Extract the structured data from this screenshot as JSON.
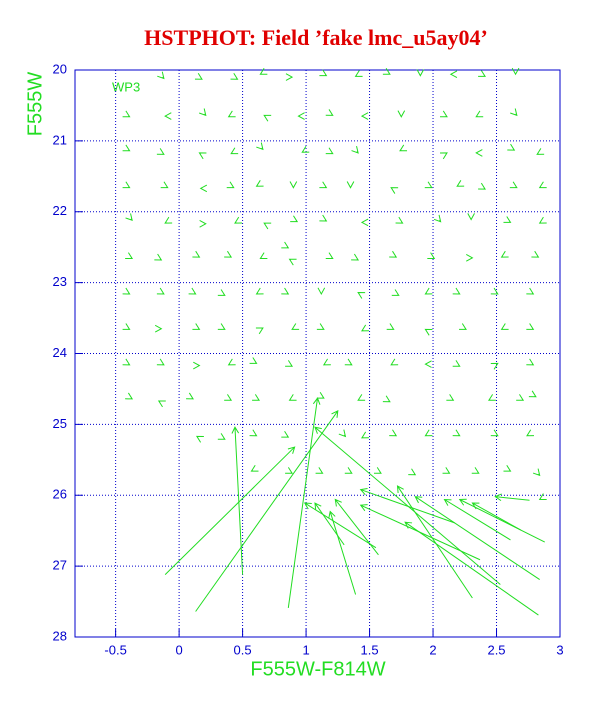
{
  "chart_data": {
    "type": "quiver",
    "title": "HSTPHOT: Field ’fake lmc_u5ay04’",
    "annotation": "WP3",
    "x_label": "F555W-F814W",
    "y_label": "F555W",
    "xlim": [
      -0.82,
      3.0
    ],
    "ylim": [
      20,
      28
    ],
    "y_inverted": true,
    "xticks": [
      -0.5,
      0,
      0.5,
      1,
      1.5,
      2,
      2.5,
      3
    ],
    "yticks": [
      20,
      21,
      22,
      23,
      24,
      25,
      26,
      27,
      28
    ],
    "grid": true,
    "color": "#22dd22",
    "vectors": [
      [
        -0.13,
        20.1,
        -0.12,
        20.12
      ],
      [
        0.17,
        20.12,
        0.18,
        20.13
      ],
      [
        0.45,
        20.12,
        0.46,
        20.13
      ],
      [
        0.65,
        20.05,
        0.64,
        20.06
      ],
      [
        0.88,
        20.1,
        0.89,
        20.1
      ],
      [
        1.15,
        20.07,
        1.16,
        20.08
      ],
      [
        1.4,
        20.08,
        1.39,
        20.09
      ],
      [
        1.65,
        20.05,
        1.66,
        20.06
      ],
      [
        1.9,
        20.07,
        1.9,
        20.08
      ],
      [
        2.15,
        20.06,
        2.14,
        20.06
      ],
      [
        2.4,
        20.08,
        2.41,
        20.09
      ],
      [
        2.65,
        20.05,
        2.65,
        20.06
      ],
      [
        -0.4,
        20.65,
        -0.39,
        20.66
      ],
      [
        -0.1,
        20.65,
        -0.11,
        20.65
      ],
      [
        0.2,
        20.62,
        0.21,
        20.64
      ],
      [
        0.4,
        20.65,
        0.39,
        20.66
      ],
      [
        0.68,
        20.65,
        0.67,
        20.64
      ],
      [
        0.95,
        20.65,
        0.94,
        20.65
      ],
      [
        1.2,
        20.63,
        1.21,
        20.64
      ],
      [
        1.45,
        20.65,
        1.44,
        20.65
      ],
      [
        1.75,
        20.65,
        1.75,
        20.66
      ],
      [
        2.1,
        20.65,
        2.11,
        20.66
      ],
      [
        2.35,
        20.65,
        2.34,
        20.66
      ],
      [
        2.65,
        20.62,
        2.66,
        20.64
      ],
      [
        -0.4,
        21.13,
        -0.39,
        21.14
      ],
      [
        -0.13,
        21.18,
        -0.12,
        21.19
      ],
      [
        0.17,
        21.18,
        0.16,
        21.17
      ],
      [
        0.42,
        21.17,
        0.41,
        21.18
      ],
      [
        0.65,
        21.1,
        0.66,
        21.12
      ],
      [
        0.98,
        21.15,
        0.97,
        21.16
      ],
      [
        1.2,
        21.17,
        1.21,
        21.18
      ],
      [
        1.4,
        21.15,
        1.41,
        21.17
      ],
      [
        1.75,
        21.13,
        1.74,
        21.14
      ],
      [
        2.1,
        21.18,
        2.11,
        21.17
      ],
      [
        2.35,
        21.17,
        2.34,
        21.17
      ],
      [
        2.63,
        21.12,
        2.64,
        21.13
      ],
      [
        2.83,
        21.18,
        2.82,
        21.19
      ],
      [
        -0.4,
        21.65,
        -0.39,
        21.66
      ],
      [
        -0.1,
        21.65,
        -0.09,
        21.66
      ],
      [
        0.18,
        21.67,
        0.17,
        21.67
      ],
      [
        0.42,
        21.65,
        0.43,
        21.66
      ],
      [
        0.62,
        21.63,
        0.61,
        21.64
      ],
      [
        0.9,
        21.65,
        0.9,
        21.66
      ],
      [
        1.15,
        21.65,
        1.16,
        21.66
      ],
      [
        1.35,
        21.65,
        1.35,
        21.66
      ],
      [
        1.68,
        21.67,
        1.67,
        21.66
      ],
      [
        1.98,
        21.65,
        1.99,
        21.66
      ],
      [
        2.2,
        21.63,
        2.19,
        21.64
      ],
      [
        2.4,
        21.67,
        2.41,
        21.68
      ],
      [
        2.65,
        21.65,
        2.66,
        21.66
      ],
      [
        2.85,
        21.65,
        2.84,
        21.66
      ],
      [
        -0.38,
        22.1,
        -0.37,
        22.12
      ],
      [
        -0.1,
        22.15,
        -0.11,
        22.16
      ],
      [
        0.2,
        22.17,
        0.21,
        22.17
      ],
      [
        0.45,
        22.15,
        0.44,
        22.16
      ],
      [
        0.68,
        22.17,
        0.67,
        22.16
      ],
      [
        0.92,
        22.13,
        0.93,
        22.14
      ],
      [
        1.15,
        22.12,
        1.16,
        22.13
      ],
      [
        1.45,
        22.15,
        1.44,
        22.15
      ],
      [
        1.75,
        22.15,
        1.76,
        22.16
      ],
      [
        2.05,
        22.12,
        2.06,
        22.14
      ],
      [
        2.3,
        22.1,
        2.3,
        22.11
      ],
      [
        2.6,
        22.14,
        2.61,
        22.15
      ],
      [
        2.85,
        22.15,
        2.84,
        22.16
      ],
      [
        -0.38,
        22.65,
        -0.37,
        22.66
      ],
      [
        -0.15,
        22.67,
        -0.14,
        22.68
      ],
      [
        0.15,
        22.63,
        0.16,
        22.64
      ],
      [
        0.4,
        22.63,
        0.41,
        22.64
      ],
      [
        0.65,
        22.65,
        0.64,
        22.66
      ],
      [
        0.85,
        22.5,
        0.86,
        22.51
      ],
      [
        0.88,
        22.68,
        0.87,
        22.67
      ],
      [
        1.2,
        22.65,
        1.21,
        22.66
      ],
      [
        1.4,
        22.67,
        1.41,
        22.68
      ],
      [
        1.7,
        22.63,
        1.71,
        22.64
      ],
      [
        2.0,
        22.65,
        2.01,
        22.66
      ],
      [
        2.3,
        22.65,
        2.31,
        22.65
      ],
      [
        2.55,
        22.63,
        2.54,
        22.64
      ],
      [
        2.82,
        22.63,
        2.83,
        22.64
      ],
      [
        -0.4,
        23.15,
        -0.39,
        23.16
      ],
      [
        -0.13,
        23.15,
        -0.12,
        23.16
      ],
      [
        0.12,
        23.15,
        0.13,
        23.16
      ],
      [
        0.35,
        23.17,
        0.36,
        23.18
      ],
      [
        0.62,
        23.15,
        0.61,
        23.16
      ],
      [
        0.85,
        23.15,
        0.86,
        23.16
      ],
      [
        1.12,
        23.15,
        1.12,
        23.16
      ],
      [
        1.42,
        23.15,
        1.41,
        23.14
      ],
      [
        1.72,
        23.17,
        1.73,
        23.18
      ],
      [
        1.95,
        23.15,
        1.94,
        23.16
      ],
      [
        2.2,
        23.15,
        2.21,
        23.16
      ],
      [
        2.5,
        23.15,
        2.51,
        23.16
      ],
      [
        2.78,
        23.15,
        2.79,
        23.16
      ],
      [
        -0.4,
        23.65,
        -0.39,
        23.66
      ],
      [
        -0.15,
        23.65,
        -0.14,
        23.65
      ],
      [
        0.15,
        23.65,
        0.16,
        23.66
      ],
      [
        0.35,
        23.65,
        0.36,
        23.66
      ],
      [
        0.65,
        23.65,
        0.66,
        23.64
      ],
      [
        0.9,
        23.65,
        0.89,
        23.66
      ],
      [
        1.13,
        23.65,
        1.14,
        23.66
      ],
      [
        1.45,
        23.67,
        1.44,
        23.68
      ],
      [
        1.68,
        23.65,
        1.69,
        23.66
      ],
      [
        1.95,
        23.67,
        1.94,
        23.66
      ],
      [
        2.25,
        23.65,
        2.26,
        23.66
      ],
      [
        2.55,
        23.65,
        2.54,
        23.66
      ],
      [
        2.78,
        23.65,
        2.79,
        23.66
      ],
      [
        -0.4,
        24.15,
        -0.39,
        24.16
      ],
      [
        -0.13,
        24.15,
        -0.12,
        24.16
      ],
      [
        0.15,
        24.17,
        0.16,
        24.17
      ],
      [
        0.4,
        24.15,
        0.39,
        24.16
      ],
      [
        0.6,
        24.13,
        0.61,
        24.14
      ],
      [
        0.88,
        24.17,
        0.89,
        24.18
      ],
      [
        1.15,
        24.15,
        1.14,
        24.16
      ],
      [
        1.35,
        24.15,
        1.36,
        24.16
      ],
      [
        1.68,
        24.15,
        1.67,
        24.16
      ],
      [
        1.95,
        24.15,
        1.94,
        24.15
      ],
      [
        2.2,
        24.17,
        2.21,
        24.18
      ],
      [
        2.5,
        24.15,
        2.51,
        24.14
      ],
      [
        2.78,
        24.15,
        2.79,
        24.16
      ],
      [
        -0.38,
        24.63,
        -0.37,
        24.64
      ],
      [
        -0.15,
        24.68,
        -0.16,
        24.67
      ],
      [
        0.1,
        24.63,
        0.11,
        24.64
      ],
      [
        0.4,
        24.65,
        0.41,
        24.66
      ],
      [
        0.62,
        24.65,
        0.63,
        24.66
      ],
      [
        0.88,
        24.65,
        0.87,
        24.66
      ],
      [
        1.13,
        24.62,
        1.14,
        24.63
      ],
      [
        1.42,
        24.65,
        1.41,
        24.66
      ],
      [
        1.65,
        24.67,
        1.66,
        24.68
      ],
      [
        2.15,
        24.65,
        2.16,
        24.66
      ],
      [
        2.45,
        24.65,
        2.44,
        24.66
      ],
      [
        2.7,
        24.65,
        2.71,
        24.66
      ],
      [
        2.8,
        24.6,
        2.81,
        24.61
      ],
      [
        0.15,
        25.18,
        0.14,
        25.17
      ],
      [
        0.35,
        25.2,
        0.36,
        25.21
      ],
      [
        0.6,
        25.15,
        0.61,
        25.16
      ],
      [
        0.85,
        25.17,
        0.86,
        25.18
      ],
      [
        1.3,
        25.15,
        1.31,
        25.17
      ],
      [
        1.45,
        25.18,
        1.44,
        25.19
      ],
      [
        1.7,
        25.15,
        1.71,
        25.16
      ],
      [
        1.95,
        25.15,
        1.94,
        25.16
      ],
      [
        2.2,
        25.15,
        2.21,
        25.16
      ],
      [
        2.5,
        25.15,
        2.51,
        25.16
      ],
      [
        2.75,
        25.15,
        2.74,
        25.16
      ],
      [
        0.58,
        25.65,
        0.57,
        25.66
      ],
      [
        0.88,
        25.68,
        0.89,
        25.69
      ],
      [
        1.12,
        25.68,
        1.13,
        25.69
      ],
      [
        1.35,
        25.68,
        1.36,
        25.69
      ],
      [
        1.58,
        25.68,
        1.59,
        25.69
      ],
      [
        1.85,
        25.7,
        1.86,
        25.71
      ],
      [
        2.12,
        25.68,
        2.13,
        25.69
      ],
      [
        2.35,
        25.68,
        2.36,
        25.69
      ],
      [
        2.6,
        25.65,
        2.61,
        25.66
      ],
      [
        2.83,
        25.7,
        2.84,
        25.72
      ],
      [
        2.85,
        26.05,
        2.84,
        26.06
      ],
      [
        -0.11,
        27.12,
        0.91,
        25.32
      ],
      [
        0.13,
        27.64,
        1.25,
        24.81
      ],
      [
        0.5,
        27.12,
        0.44,
        25.04
      ],
      [
        0.86,
        27.59,
        1.09,
        24.63
      ],
      [
        1.39,
        27.4,
        1.19,
        26.23
      ],
      [
        1.55,
        26.74,
        0.99,
        26.11
      ],
      [
        2.31,
        27.45,
        1.72,
        25.87
      ],
      [
        2.53,
        27.26,
        1.07,
        25.04
      ],
      [
        2.83,
        27.69,
        1.78,
        26.38
      ],
      [
        2.84,
        27.19,
        1.86,
        26.02
      ],
      [
        2.88,
        26.66,
        2.21,
        26.06
      ],
      [
        2.61,
        26.63,
        2.09,
        26.06
      ],
      [
        2.37,
        26.91,
        1.43,
        26.14
      ],
      [
        1.57,
        26.84,
        1.23,
        26.06
      ],
      [
        2.76,
        26.07,
        2.49,
        26.02
      ],
      [
        2.17,
        26.39,
        1.43,
        25.92
      ],
      [
        1.3,
        26.7,
        1.07,
        26.11
      ],
      [
        2.69,
        26.49,
        2.31,
        26.11
      ]
    ]
  }
}
